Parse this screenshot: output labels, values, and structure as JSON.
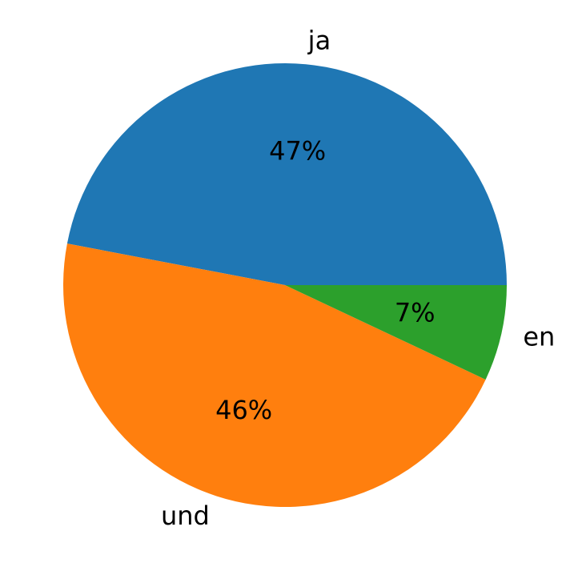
{
  "chart_data": {
    "type": "pie",
    "categories": [
      "ja",
      "und",
      "en"
    ],
    "values": [
      47,
      46,
      7
    ],
    "value_labels": [
      "47%",
      "46%",
      "7%"
    ],
    "colors": [
      "#1f77b4",
      "#ff7f0e",
      "#2ca02c"
    ],
    "start_angle": 0,
    "direction": "counterclockwise"
  }
}
